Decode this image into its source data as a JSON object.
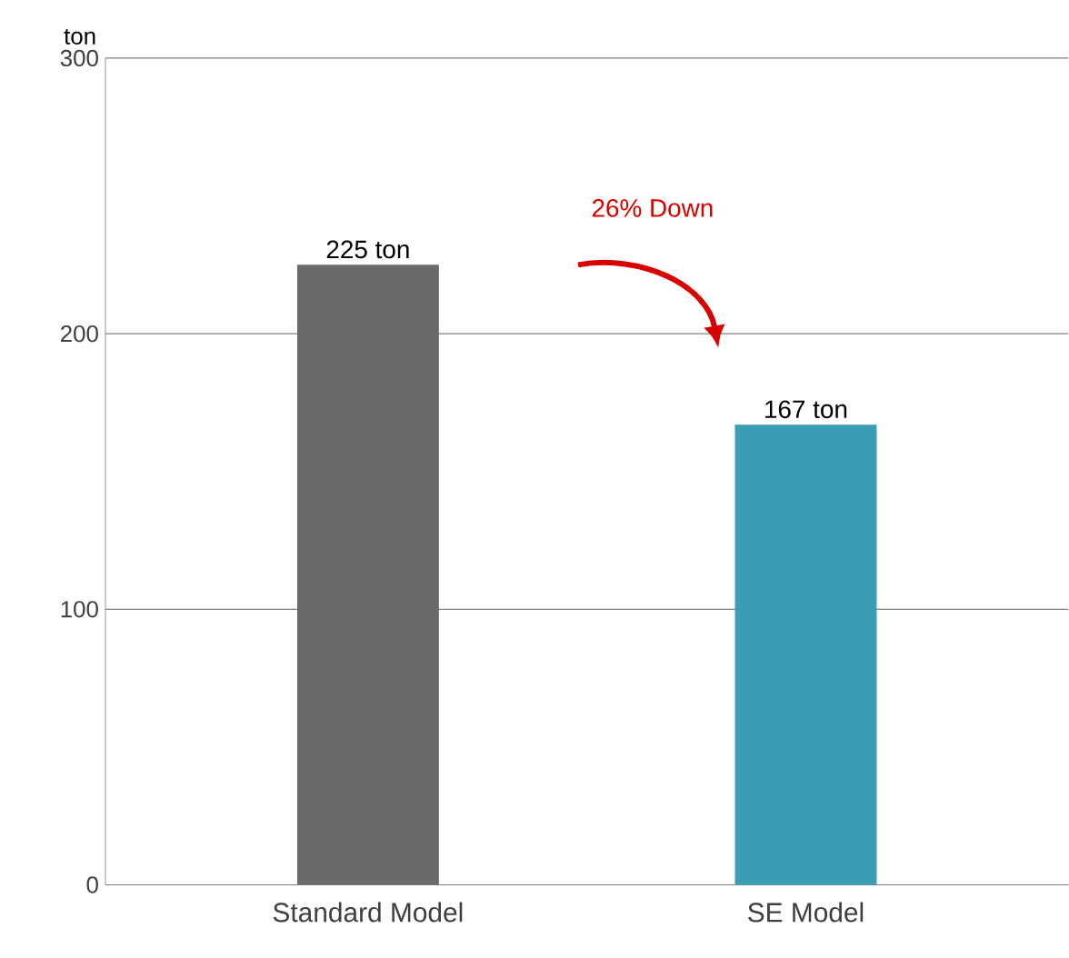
{
  "chart_data": {
    "type": "bar",
    "ylabel": "ton",
    "categories": [
      "Standard Model",
      "SE Model"
    ],
    "values": [
      225,
      167
    ],
    "colors": [
      "#6a6a6a",
      "#3a9db3"
    ],
    "value_labels": [
      "225 ton",
      "167 ton"
    ],
    "ylim": [
      0,
      300
    ],
    "yticks": [
      0,
      100,
      200,
      300
    ],
    "grid": "y",
    "annotations": [
      "26% Down"
    ]
  }
}
